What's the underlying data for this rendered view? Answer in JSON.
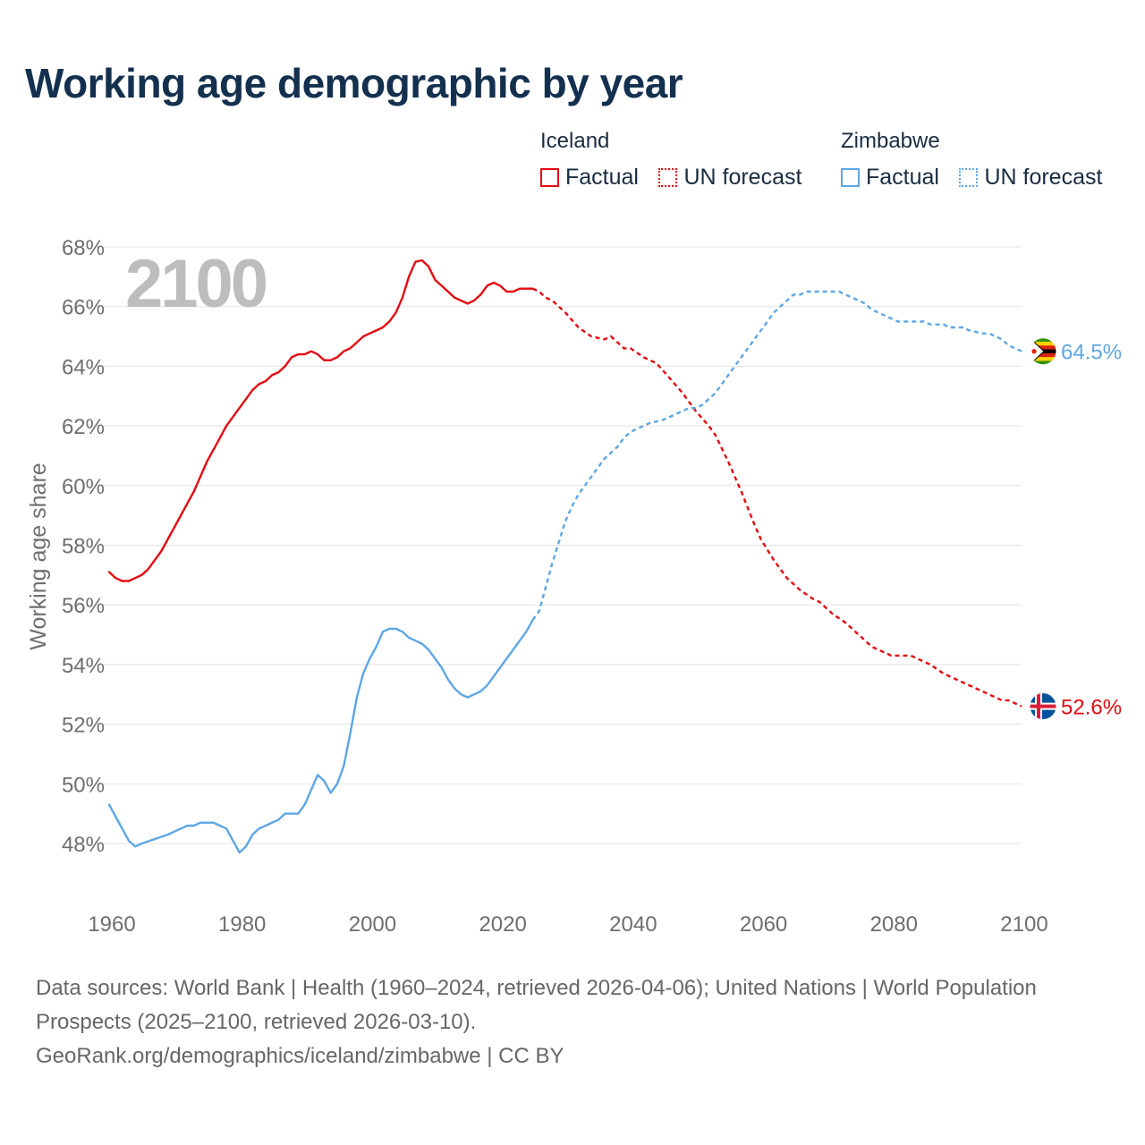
{
  "title": "Working age demographic by year",
  "legend": {
    "groups": [
      {
        "name": "Iceland",
        "color": "#e30b12",
        "factual_label": "Factual",
        "forecast_label": "UN forecast"
      },
      {
        "name": "Zimbabwe",
        "color": "#5ea6e4",
        "factual_label": "Factual",
        "forecast_label": "UN forecast"
      }
    ]
  },
  "footer": {
    "sources": "Data sources: World Bank | Health (1960–2024, retrieved 2026-04-06); United Nations | World Population Prospects (2025–2100, retrieved 2026-03-10).",
    "attribution": "GeoRank.org/demographics/iceland/zimbabwe | CC BY"
  },
  "chart_data": {
    "type": "line",
    "title": "Working age demographic by year",
    "year_overlay": "2100",
    "xlabel": "",
    "ylabel": "Working age share",
    "xlim": [
      1960,
      2100
    ],
    "ylim": [
      46.6,
      68.4
    ],
    "x_ticks": [
      1960,
      1980,
      2000,
      2020,
      2040,
      2060,
      2080,
      2100
    ],
    "y_ticks": [
      48,
      50,
      52,
      54,
      56,
      58,
      60,
      62,
      64,
      66,
      68
    ],
    "tick_suffix": "%",
    "grid": true,
    "forecast_start_year": 2025,
    "series": [
      {
        "name": "Iceland",
        "color": "#e30b12",
        "flag": "iceland-flag",
        "end_label": "52.6%",
        "points": [
          [
            1960,
            57.1
          ],
          [
            1961,
            56.9
          ],
          [
            1962,
            56.8
          ],
          [
            1963,
            56.8
          ],
          [
            1964,
            56.9
          ],
          [
            1965,
            57.0
          ],
          [
            1966,
            57.2
          ],
          [
            1967,
            57.5
          ],
          [
            1968,
            57.8
          ],
          [
            1970,
            58.6
          ],
          [
            1972,
            59.4
          ],
          [
            1973,
            59.8
          ],
          [
            1975,
            60.8
          ],
          [
            1977,
            61.6
          ],
          [
            1978,
            62.0
          ],
          [
            1980,
            62.6
          ],
          [
            1982,
            63.2
          ],
          [
            1983,
            63.4
          ],
          [
            1984,
            63.5
          ],
          [
            1985,
            63.7
          ],
          [
            1986,
            63.8
          ],
          [
            1987,
            64.0
          ],
          [
            1988,
            64.3
          ],
          [
            1989,
            64.4
          ],
          [
            1990,
            64.4
          ],
          [
            1991,
            64.5
          ],
          [
            1992,
            64.4
          ],
          [
            1993,
            64.2
          ],
          [
            1994,
            64.2
          ],
          [
            1995,
            64.3
          ],
          [
            1996,
            64.5
          ],
          [
            1997,
            64.6
          ],
          [
            1998,
            64.8
          ],
          [
            1999,
            65.0
          ],
          [
            2000,
            65.1
          ],
          [
            2001,
            65.2
          ],
          [
            2002,
            65.3
          ],
          [
            2003,
            65.5
          ],
          [
            2004,
            65.8
          ],
          [
            2005,
            66.3
          ],
          [
            2006,
            67.0
          ],
          [
            2007,
            67.5
          ],
          [
            2008,
            67.55
          ],
          [
            2009,
            67.35
          ],
          [
            2010,
            66.9
          ],
          [
            2011,
            66.7
          ],
          [
            2012,
            66.5
          ],
          [
            2013,
            66.3
          ],
          [
            2014,
            66.2
          ],
          [
            2015,
            66.1
          ],
          [
            2016,
            66.2
          ],
          [
            2017,
            66.4
          ],
          [
            2018,
            66.7
          ],
          [
            2019,
            66.8
          ],
          [
            2020,
            66.7
          ],
          [
            2021,
            66.5
          ],
          [
            2022,
            66.5
          ],
          [
            2023,
            66.6
          ],
          [
            2024,
            66.6
          ],
          [
            2025,
            66.6
          ],
          [
            2026,
            66.5
          ],
          [
            2027,
            66.3
          ],
          [
            2028,
            66.2
          ],
          [
            2030,
            65.8
          ],
          [
            2032,
            65.3
          ],
          [
            2034,
            65.0
          ],
          [
            2036,
            64.9
          ],
          [
            2037,
            65.0
          ],
          [
            2039,
            64.6
          ],
          [
            2040,
            64.6
          ],
          [
            2042,
            64.3
          ],
          [
            2044,
            64.1
          ],
          [
            2046,
            63.6
          ],
          [
            2048,
            63.1
          ],
          [
            2050,
            62.5
          ],
          [
            2052,
            62.0
          ],
          [
            2053,
            61.7
          ],
          [
            2055,
            60.8
          ],
          [
            2057,
            59.8
          ],
          [
            2059,
            58.7
          ],
          [
            2060,
            58.2
          ],
          [
            2062,
            57.5
          ],
          [
            2064,
            56.9
          ],
          [
            2066,
            56.5
          ],
          [
            2068,
            56.2
          ],
          [
            2069,
            56.1
          ],
          [
            2071,
            55.7
          ],
          [
            2073,
            55.4
          ],
          [
            2075,
            55.0
          ],
          [
            2077,
            54.6
          ],
          [
            2080,
            54.3
          ],
          [
            2083,
            54.3
          ],
          [
            2086,
            54.0
          ],
          [
            2088,
            53.7
          ],
          [
            2091,
            53.4
          ],
          [
            2094,
            53.1
          ],
          [
            2097,
            52.8
          ],
          [
            2098,
            52.8
          ],
          [
            2100,
            52.6
          ]
        ]
      },
      {
        "name": "Zimbabwe",
        "color": "#5ea6e4",
        "flag": "zimbabwe-flag",
        "end_label": "64.5%",
        "points": [
          [
            1960,
            49.3
          ],
          [
            1961,
            48.9
          ],
          [
            1962,
            48.5
          ],
          [
            1963,
            48.1
          ],
          [
            1964,
            47.9
          ],
          [
            1965,
            48.0
          ],
          [
            1967,
            48.15
          ],
          [
            1969,
            48.3
          ],
          [
            1971,
            48.5
          ],
          [
            1972,
            48.6
          ],
          [
            1973,
            48.6
          ],
          [
            1974,
            48.7
          ],
          [
            1976,
            48.7
          ],
          [
            1977,
            48.6
          ],
          [
            1978,
            48.5
          ],
          [
            1979,
            48.1
          ],
          [
            1980,
            47.7
          ],
          [
            1981,
            47.9
          ],
          [
            1982,
            48.3
          ],
          [
            1983,
            48.5
          ],
          [
            1985,
            48.7
          ],
          [
            1986,
            48.8
          ],
          [
            1987,
            49.0
          ],
          [
            1989,
            49.0
          ],
          [
            1990,
            49.3
          ],
          [
            1991,
            49.8
          ],
          [
            1992,
            50.3
          ],
          [
            1993,
            50.1
          ],
          [
            1994,
            49.7
          ],
          [
            1995,
            50.0
          ],
          [
            1996,
            50.6
          ],
          [
            1997,
            51.7
          ],
          [
            1998,
            52.9
          ],
          [
            1999,
            53.7
          ],
          [
            2000,
            54.2
          ],
          [
            2001,
            54.6
          ],
          [
            2002,
            55.1
          ],
          [
            2003,
            55.2
          ],
          [
            2004,
            55.2
          ],
          [
            2005,
            55.1
          ],
          [
            2006,
            54.9
          ],
          [
            2007,
            54.8
          ],
          [
            2008,
            54.7
          ],
          [
            2009,
            54.5
          ],
          [
            2010,
            54.2
          ],
          [
            2011,
            53.9
          ],
          [
            2012,
            53.5
          ],
          [
            2013,
            53.2
          ],
          [
            2014,
            53.0
          ],
          [
            2015,
            52.9
          ],
          [
            2016,
            53.0
          ],
          [
            2017,
            53.1
          ],
          [
            2018,
            53.3
          ],
          [
            2019,
            53.6
          ],
          [
            2020,
            53.9
          ],
          [
            2021,
            54.2
          ],
          [
            2022,
            54.5
          ],
          [
            2023,
            54.8
          ],
          [
            2024,
            55.1
          ],
          [
            2025,
            55.5
          ],
          [
            2026,
            55.8
          ],
          [
            2027,
            56.6
          ],
          [
            2028,
            57.4
          ],
          [
            2029,
            58.1
          ],
          [
            2030,
            58.8
          ],
          [
            2031,
            59.3
          ],
          [
            2032,
            59.7
          ],
          [
            2033,
            60.0
          ],
          [
            2034,
            60.3
          ],
          [
            2035,
            60.6
          ],
          [
            2036,
            60.9
          ],
          [
            2037,
            61.1
          ],
          [
            2038,
            61.3
          ],
          [
            2039,
            61.6
          ],
          [
            2040,
            61.8
          ],
          [
            2041,
            61.9
          ],
          [
            2042,
            62.0
          ],
          [
            2043,
            62.1
          ],
          [
            2045,
            62.2
          ],
          [
            2046,
            62.3
          ],
          [
            2047,
            62.4
          ],
          [
            2048,
            62.5
          ],
          [
            2049,
            62.6
          ],
          [
            2050,
            62.6
          ],
          [
            2051,
            62.7
          ],
          [
            2052,
            62.9
          ],
          [
            2053,
            63.1
          ],
          [
            2054,
            63.4
          ],
          [
            2055,
            63.7
          ],
          [
            2056,
            64.0
          ],
          [
            2057,
            64.3
          ],
          [
            2058,
            64.6
          ],
          [
            2059,
            64.9
          ],
          [
            2060,
            65.2
          ],
          [
            2061,
            65.5
          ],
          [
            2062,
            65.8
          ],
          [
            2063,
            66.0
          ],
          [
            2064,
            66.2
          ],
          [
            2065,
            66.4
          ],
          [
            2066,
            66.4
          ],
          [
            2067,
            66.5
          ],
          [
            2068,
            66.5
          ],
          [
            2070,
            66.5
          ],
          [
            2072,
            66.5
          ],
          [
            2073,
            66.4
          ],
          [
            2074,
            66.3
          ],
          [
            2075,
            66.2
          ],
          [
            2076,
            66.1
          ],
          [
            2077,
            65.9
          ],
          [
            2078,
            65.8
          ],
          [
            2079,
            65.7
          ],
          [
            2080,
            65.6
          ],
          [
            2081,
            65.5
          ],
          [
            2084,
            65.5
          ],
          [
            2085,
            65.5
          ],
          [
            2086,
            65.4
          ],
          [
            2088,
            65.4
          ],
          [
            2089,
            65.3
          ],
          [
            2091,
            65.3
          ],
          [
            2092,
            65.2
          ],
          [
            2094,
            65.1
          ],
          [
            2095,
            65.1
          ],
          [
            2096,
            65.0
          ],
          [
            2097,
            64.9
          ],
          [
            2098,
            64.7
          ],
          [
            2099,
            64.6
          ],
          [
            2100,
            64.5
          ]
        ]
      }
    ]
  }
}
